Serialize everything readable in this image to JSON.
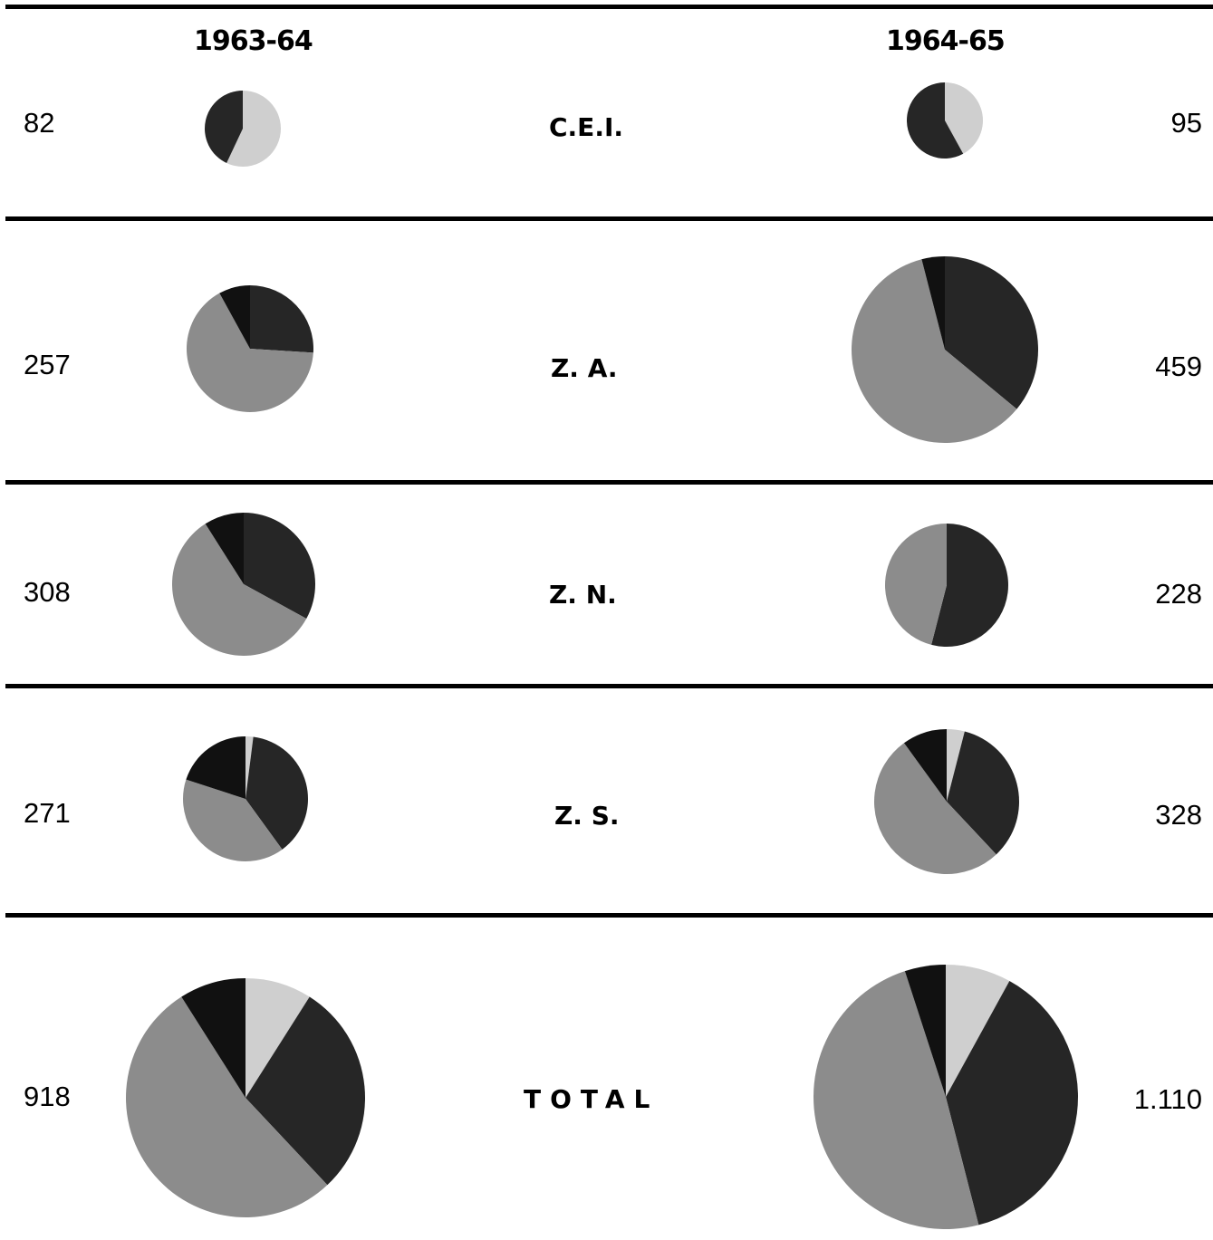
{
  "header": {
    "year_left": "1963-64",
    "year_right": "1964-65"
  },
  "colors": [
    "#cfcfcf",
    "#262626",
    "#8c8c8c",
    "#111111",
    "#b4b4b4"
  ],
  "chart_data": {
    "type": "pie",
    "rows": [
      {
        "region": "C.E.I.",
        "total_1963_64": "82",
        "total_1964_65": "95",
        "pie_1963_64": [
          0.57,
          0.43
        ],
        "pie_1964_65": [
          0.42,
          0.58
        ]
      },
      {
        "region": "Z. A.",
        "total_1963_64": "257",
        "total_1964_65": "459",
        "pie_1963_64": [
          0.0,
          0.26,
          0.66,
          0.08
        ],
        "pie_1964_65": [
          0.0,
          0.36,
          0.6,
          0.04
        ]
      },
      {
        "region": "Z. N.",
        "total_1963_64": "308",
        "total_1964_65": "228",
        "pie_1963_64": [
          0.0,
          0.33,
          0.58,
          0.09
        ],
        "pie_1964_65": [
          0.0,
          0.54,
          0.46,
          0.0
        ]
      },
      {
        "region": "Z. S.",
        "total_1963_64": "271",
        "total_1964_65": "328",
        "pie_1963_64": [
          0.02,
          0.38,
          0.4,
          0.2
        ],
        "pie_1964_65": [
          0.04,
          0.34,
          0.52,
          0.1
        ]
      },
      {
        "region": "TOTAL",
        "total_1963_64": "918",
        "total_1964_65": "1.110",
        "pie_1963_64": [
          0.09,
          0.29,
          0.53,
          0.09
        ],
        "pie_1964_65": [
          0.08,
          0.38,
          0.49,
          0.05
        ]
      }
    ]
  }
}
